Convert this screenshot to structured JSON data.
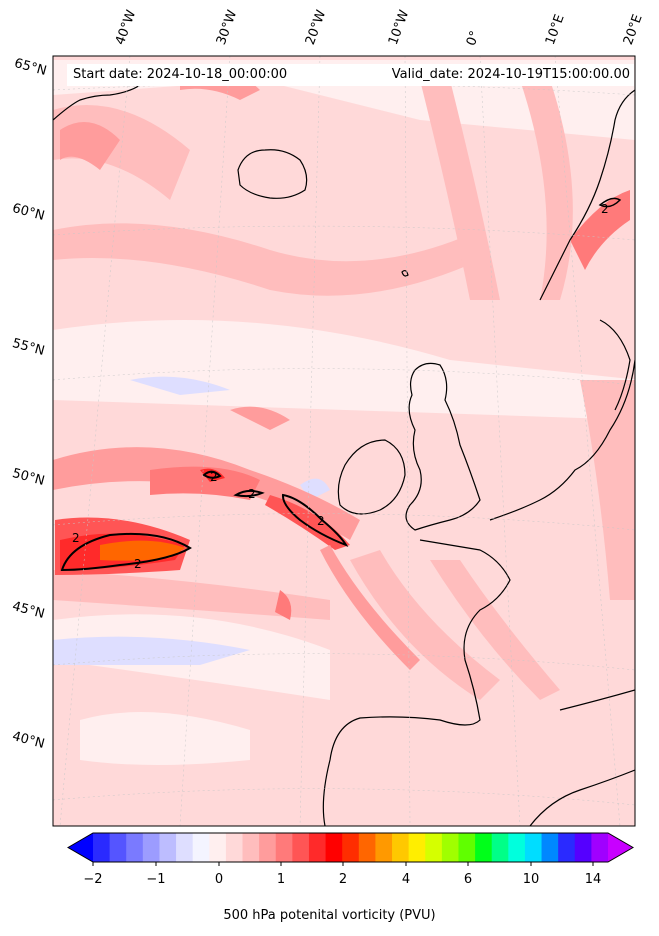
{
  "map": {
    "start_date": "Start date: 2024-10-18_00:00:00",
    "valid_date": "Valid_date: 2024-10-19T15:00:00.00",
    "lon_labels": [
      "40°W",
      "30°W",
      "20°W",
      "10°W",
      "0°",
      "10°E",
      "20°E"
    ],
    "lat_labels": [
      "65°N",
      "60°N",
      "55°N",
      "50°N",
      "45°N",
      "40°N"
    ],
    "contour_labels": [
      "2",
      "2",
      "2",
      "2",
      "2",
      "2"
    ],
    "region": "North Atlantic and Western Europe"
  },
  "colorbar": {
    "label": "500 hPa potenital vorticity (PVU)",
    "tick_labels": [
      "−2",
      "−1",
      "0",
      "1",
      "2",
      "4",
      "6",
      "10",
      "14"
    ],
    "colors": [
      "#0000ff",
      "#2a2aff",
      "#5555ff",
      "#7a7aff",
      "#9c9cff",
      "#bdbdff",
      "#dedeff",
      "#f4f4ff",
      "#ffefef",
      "#ffd9d9",
      "#ffbdbd",
      "#ff9c9c",
      "#ff7a7a",
      "#ff5555",
      "#ff2a2a",
      "#ff0000",
      "#ff2d00",
      "#ff6600",
      "#ff9900",
      "#ffc800",
      "#ffee00",
      "#d5ff00",
      "#a0ff00",
      "#60ff00",
      "#00ff1a",
      "#00ff88",
      "#00ffdd",
      "#00ddff",
      "#0088ff",
      "#2a2aff",
      "#5500ff",
      "#a000ff",
      "#c800ff"
    ]
  }
}
